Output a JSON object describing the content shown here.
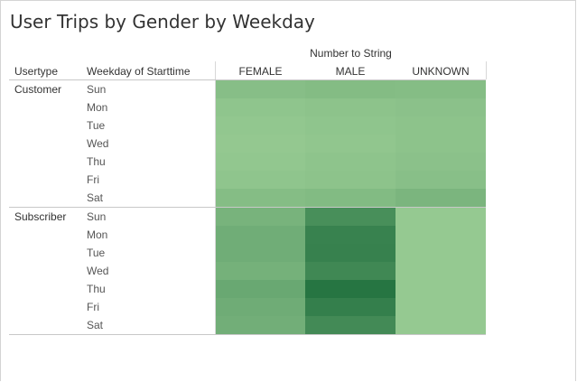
{
  "title": "User Trips by Gender by Weekday",
  "column_group_title": "Number to String",
  "header": {
    "usertype": "Usertype",
    "weekday": "Weekday of Starttime"
  },
  "chart_data": {
    "type": "heatmap",
    "title": "User Trips by Gender by Weekday",
    "column_group": "Number to String",
    "columns": [
      "FEMALE",
      "MALE",
      "UNKNOWN"
    ],
    "row_dimensions": [
      "Usertype",
      "Weekday of Starttime"
    ],
    "groups": [
      {
        "usertype": "Customer",
        "rows": [
          {
            "day": "Sun",
            "values": [
              0.3,
              0.32,
              0.31
            ]
          },
          {
            "day": "Mon",
            "values": [
              0.24,
              0.26,
              0.27
            ]
          },
          {
            "day": "Tue",
            "values": [
              0.22,
              0.24,
              0.26
            ]
          },
          {
            "day": "Wed",
            "values": [
              0.21,
              0.23,
              0.26
            ]
          },
          {
            "day": "Thu",
            "values": [
              0.22,
              0.25,
              0.27
            ]
          },
          {
            "day": "Fri",
            "values": [
              0.24,
              0.26,
              0.29
            ]
          },
          {
            "day": "Sat",
            "values": [
              0.31,
              0.33,
              0.38
            ]
          }
        ]
      },
      {
        "usertype": "Subscriber",
        "rows": [
          {
            "day": "Sun",
            "values": [
              0.4,
              0.72,
              0.2
            ]
          },
          {
            "day": "Mon",
            "values": [
              0.45,
              0.83,
              0.2
            ]
          },
          {
            "day": "Tue",
            "values": [
              0.45,
              0.84,
              0.2
            ]
          },
          {
            "day": "Wed",
            "values": [
              0.42,
              0.78,
              0.2
            ]
          },
          {
            "day": "Thu",
            "values": [
              0.5,
              0.95,
              0.2
            ]
          },
          {
            "day": "Fri",
            "values": [
              0.46,
              0.86,
              0.2
            ]
          },
          {
            "day": "Sat",
            "values": [
              0.44,
              0.76,
              0.2
            ]
          }
        ]
      }
    ],
    "color_scale": {
      "low": "#b3e0a6",
      "high": "#1f6f3d"
    }
  }
}
